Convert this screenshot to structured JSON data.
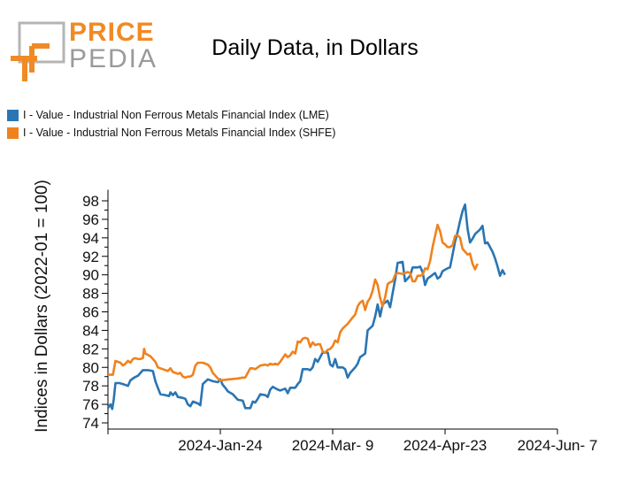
{
  "title": "Daily Data, in Dollars",
  "logo": {
    "line1": "PRICE",
    "line2": "PEDIA"
  },
  "colors": {
    "lme": "#2a75b3",
    "shfe": "#f0821e",
    "logo_orange": "#f08a24",
    "logo_gray": "#9a9a9a"
  },
  "chart_data": {
    "type": "line",
    "title": "Daily Data, in Dollars",
    "xlabel": "",
    "ylabel": "Indices in Dollars (2022-01 = 100)",
    "ylim": [
      74,
      99
    ],
    "yticks": [
      74,
      76,
      78,
      80,
      82,
      84,
      86,
      88,
      90,
      92,
      94,
      96,
      98
    ],
    "xticks": [
      {
        "day": 45,
        "label": "2024-Jan-24"
      },
      {
        "day": 90,
        "label": "2024-Mar- 9"
      },
      {
        "day": 135,
        "label": "2024-Apr-23"
      },
      {
        "day": 180,
        "label": "2024-Jun- 7"
      }
    ],
    "series": [
      {
        "name": "I - Value - Industrial Non Ferrous Metals Financial Index (LME)",
        "color": "#2a75b3",
        "points": [
          [
            0,
            75.6
          ],
          [
            1,
            76.0
          ],
          [
            1.7,
            75.5
          ],
          [
            2.3,
            76.5
          ],
          [
            3,
            78.3
          ],
          [
            4.5,
            78.3
          ],
          [
            6,
            78.2
          ],
          [
            8,
            78.0
          ],
          [
            9,
            78.6
          ],
          [
            10.5,
            78.9
          ],
          [
            12,
            79.1
          ],
          [
            14,
            79.7
          ],
          [
            16,
            79.7
          ],
          [
            18,
            79.6
          ],
          [
            19,
            78.5
          ],
          [
            20,
            77.8
          ],
          [
            21,
            77.1
          ],
          [
            23,
            77.0
          ],
          [
            24.5,
            76.9
          ],
          [
            25,
            77.3
          ],
          [
            26,
            77.0
          ],
          [
            27,
            77.3
          ],
          [
            28,
            76.8
          ],
          [
            30,
            76.7
          ],
          [
            31,
            76.6
          ],
          [
            32,
            76.0
          ],
          [
            33,
            75.8
          ],
          [
            34,
            76.3
          ],
          [
            36,
            76.1
          ],
          [
            37,
            75.9
          ],
          [
            38,
            78.2
          ],
          [
            40,
            78.7
          ],
          [
            42,
            78.5
          ],
          [
            44,
            78.4
          ],
          [
            45,
            78.7
          ],
          [
            46,
            78.1
          ],
          [
            47,
            77.8
          ],
          [
            48,
            77.4
          ],
          [
            50,
            77.1
          ],
          [
            52,
            76.5
          ],
          [
            54,
            76.4
          ],
          [
            55,
            75.6
          ],
          [
            57,
            75.6
          ],
          [
            58,
            76.3
          ],
          [
            59,
            76.2
          ],
          [
            60,
            76.6
          ],
          [
            61,
            77.1
          ],
          [
            63,
            77.0
          ],
          [
            64,
            76.8
          ],
          [
            65,
            77.6
          ],
          [
            66,
            77.9
          ],
          [
            68,
            77.6
          ],
          [
            69,
            77.5
          ],
          [
            71,
            77.7
          ],
          [
            72,
            77.2
          ],
          [
            73,
            77.8
          ],
          [
            75,
            77.8
          ],
          [
            76,
            78.2
          ],
          [
            77,
            78.5
          ],
          [
            78,
            79.8
          ],
          [
            80,
            79.8
          ],
          [
            81,
            79.7
          ],
          [
            82,
            80.0
          ],
          [
            83,
            80.9
          ],
          [
            84,
            80.6
          ],
          [
            85,
            81.1
          ],
          [
            86,
            81.6
          ],
          [
            88,
            81.6
          ],
          [
            89,
            80.3
          ],
          [
            90,
            80.1
          ],
          [
            91,
            80.9
          ],
          [
            92,
            80.0
          ],
          [
            94,
            80.0
          ],
          [
            95,
            79.8
          ],
          [
            96,
            78.9
          ],
          [
            97,
            79.4
          ],
          [
            99,
            80.0
          ],
          [
            100,
            80.4
          ],
          [
            101,
            81.1
          ],
          [
            102,
            81.3
          ],
          [
            103,
            81.5
          ],
          [
            104,
            84.0
          ],
          [
            106,
            84.5
          ],
          [
            107,
            85.5
          ],
          [
            108,
            86.8
          ],
          [
            109,
            85.5
          ],
          [
            110,
            86.8
          ],
          [
            112,
            87.2
          ],
          [
            113,
            86.5
          ],
          [
            114,
            88.0
          ],
          [
            115,
            89.5
          ],
          [
            116,
            91.3
          ],
          [
            118,
            91.4
          ],
          [
            119,
            89.3
          ],
          [
            121,
            89.9
          ],
          [
            122,
            90.8
          ],
          [
            124,
            90.8
          ],
          [
            125,
            90.9
          ],
          [
            126,
            90.3
          ],
          [
            127,
            88.9
          ],
          [
            128,
            89.6
          ],
          [
            129,
            89.8
          ],
          [
            131,
            90.2
          ],
          [
            132,
            89.6
          ],
          [
            133,
            89.8
          ],
          [
            134,
            90.4
          ],
          [
            136,
            90.7
          ],
          [
            137,
            90.8
          ],
          [
            138,
            92.2
          ],
          [
            139,
            93.6
          ],
          [
            140,
            94.6
          ],
          [
            141,
            95.8
          ],
          [
            142,
            96.9
          ],
          [
            143,
            97.6
          ],
          [
            144,
            95.0
          ],
          [
            145,
            93.5
          ],
          [
            146,
            93.9
          ],
          [
            147,
            94.4
          ],
          [
            149,
            94.9
          ],
          [
            150,
            95.3
          ],
          [
            151,
            93.4
          ],
          [
            152,
            93.5
          ],
          [
            153,
            93.0
          ],
          [
            154,
            92.5
          ],
          [
            155,
            91.8
          ],
          [
            156,
            90.9
          ],
          [
            157,
            89.9
          ],
          [
            158,
            90.5
          ],
          [
            159,
            90.0
          ]
        ]
      },
      {
        "name": "I - Value - Industrial Non Ferrous Metals Financial Index (SHFE)",
        "color": "#f0821e",
        "points": [
          [
            0,
            79.2
          ],
          [
            2,
            79.2
          ],
          [
            3,
            80.7
          ],
          [
            4,
            80.6
          ],
          [
            5,
            80.5
          ],
          [
            6,
            80.2
          ],
          [
            7,
            80.4
          ],
          [
            8,
            80.7
          ],
          [
            9,
            80.5
          ],
          [
            10,
            80.9
          ],
          [
            11,
            81.0
          ],
          [
            12,
            80.9
          ],
          [
            13,
            80.9
          ],
          [
            14,
            81.0
          ],
          [
            14.5,
            82.0
          ],
          [
            15,
            81.5
          ],
          [
            17,
            81.2
          ],
          [
            18,
            80.9
          ],
          [
            19,
            80.6
          ],
          [
            20,
            80.0
          ],
          [
            22,
            79.8
          ],
          [
            24,
            79.6
          ],
          [
            25,
            79.9
          ],
          [
            26,
            79.5
          ],
          [
            27,
            79.4
          ],
          [
            28,
            79.3
          ],
          [
            29,
            79.4
          ],
          [
            30,
            79.0
          ],
          [
            31,
            78.9
          ],
          [
            32,
            79.0
          ],
          [
            33,
            79.0
          ],
          [
            34,
            79.2
          ],
          [
            35,
            80.2
          ],
          [
            36,
            80.5
          ],
          [
            38,
            80.5
          ],
          [
            39,
            80.4
          ],
          [
            40,
            80.3
          ],
          [
            41,
            80.0
          ],
          [
            42,
            79.4
          ],
          [
            44,
            78.8
          ],
          [
            45,
            78.6
          ],
          [
            52,
            78.8
          ],
          [
            54,
            78.9
          ],
          [
            55,
            78.9
          ],
          [
            56,
            79.4
          ],
          [
            57,
            79.9
          ],
          [
            58,
            79.9
          ],
          [
            59,
            79.8
          ],
          [
            60,
            80.0
          ],
          [
            61,
            80.2
          ],
          [
            63,
            80.3
          ],
          [
            64,
            80.2
          ],
          [
            65,
            80.4
          ],
          [
            66,
            80.3
          ],
          [
            67,
            80.4
          ],
          [
            68,
            80.3
          ],
          [
            69,
            80.6
          ],
          [
            70,
            81.0
          ],
          [
            71,
            81.4
          ],
          [
            72,
            81.1
          ],
          [
            73,
            81.3
          ],
          [
            74,
            81.7
          ],
          [
            75,
            81.5
          ],
          [
            76,
            82.8
          ],
          [
            77,
            82.7
          ],
          [
            78,
            83.1
          ],
          [
            79,
            83.2
          ],
          [
            80,
            83.1
          ],
          [
            81,
            82.2
          ],
          [
            82,
            82.7
          ],
          [
            83,
            82.4
          ],
          [
            84,
            82.5
          ],
          [
            85,
            82.5
          ],
          [
            86,
            81.7
          ],
          [
            87,
            81.6
          ],
          [
            88,
            81.9
          ],
          [
            89,
            82.0
          ],
          [
            90,
            82.3
          ],
          [
            91,
            82.9
          ],
          [
            92,
            82.7
          ],
          [
            93,
            83.8
          ],
          [
            94,
            84.2
          ],
          [
            96,
            84.7
          ],
          [
            98,
            85.4
          ],
          [
            99,
            85.7
          ],
          [
            100,
            86.6
          ],
          [
            101,
            87.0
          ],
          [
            102,
            87.2
          ],
          [
            103,
            86.2
          ],
          [
            104,
            87.1
          ],
          [
            105,
            87.5
          ],
          [
            106,
            88.3
          ],
          [
            107,
            89.5
          ],
          [
            108,
            88.9
          ],
          [
            109,
            87.5
          ],
          [
            110,
            86.6
          ],
          [
            111,
            87.6
          ],
          [
            112,
            89.0
          ],
          [
            113,
            89.2
          ],
          [
            114,
            89.3
          ],
          [
            115,
            90.0
          ],
          [
            116,
            90.2
          ],
          [
            118,
            90.1
          ],
          [
            119,
            90.2
          ],
          [
            120,
            90.3
          ],
          [
            121,
            90.2
          ],
          [
            122,
            89.3
          ],
          [
            123,
            89.3
          ],
          [
            124,
            89.9
          ],
          [
            125,
            89.9
          ],
          [
            126,
            90.0
          ],
          [
            127,
            90.7
          ],
          [
            128,
            90.6
          ],
          [
            129,
            91.5
          ],
          [
            130,
            93.0
          ],
          [
            131,
            94.2
          ],
          [
            132,
            95.4
          ],
          [
            133,
            94.7
          ],
          [
            134,
            93.5
          ],
          [
            135,
            93.3
          ],
          [
            136,
            93.0
          ],
          [
            137,
            93.0
          ],
          [
            138,
            93.2
          ],
          [
            139,
            94.2
          ],
          [
            140,
            94.3
          ],
          [
            141,
            94.0
          ],
          [
            142,
            92.8
          ],
          [
            143,
            92.5
          ],
          [
            144,
            92.2
          ],
          [
            145,
            92.3
          ],
          [
            146,
            91.2
          ],
          [
            147,
            90.6
          ],
          [
            148,
            91.2
          ]
        ]
      }
    ]
  }
}
